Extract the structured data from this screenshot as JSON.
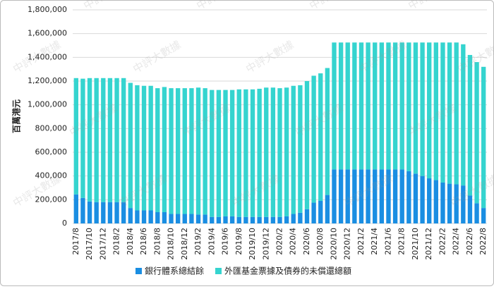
{
  "chart_data": {
    "type": "stacked-bar",
    "y_label": "百萬港元",
    "watermark": "中評大數據",
    "categories": [
      "2017/8",
      null,
      "2017/10",
      null,
      "2017/12",
      null,
      "2018/2",
      null,
      "2018/4",
      null,
      "2018/6",
      null,
      "2018/8",
      null,
      "2018/10",
      null,
      "2018/12",
      null,
      "2019/2",
      null,
      "2019/4",
      null,
      "2019/6",
      null,
      "2019/8",
      null,
      "2019/10",
      null,
      "2019/12",
      null,
      "2020/2",
      null,
      "2020/4",
      null,
      "2020/6",
      null,
      "2020/8",
      null,
      "2020/10",
      null,
      "2020/12",
      null,
      "2021/2",
      null,
      "2021/4",
      null,
      "2021/6",
      null,
      "2021/8",
      null,
      "2021/10",
      null,
      "2021/12",
      null,
      "2022/2",
      null,
      "2022/4",
      null,
      "2022/6",
      null,
      "2022/8"
    ],
    "series": [
      {
        "name": "銀行體系總結餘",
        "color": "#1a8ee2",
        "values": [
          245000,
          215000,
          185000,
          180000,
          180000,
          180000,
          180000,
          180000,
          130000,
          110000,
          110000,
          110000,
          95000,
          95000,
          80000,
          80000,
          80000,
          80000,
          75000,
          75000,
          55000,
          55000,
          60000,
          60000,
          55000,
          55000,
          55000,
          55000,
          55000,
          55000,
          55000,
          60000,
          80000,
          90000,
          120000,
          175000,
          190000,
          240000,
          455000,
          455000,
          455000,
          455000,
          455000,
          455000,
          455000,
          455000,
          455000,
          455000,
          455000,
          440000,
          420000,
          400000,
          380000,
          365000,
          345000,
          335000,
          330000,
          320000,
          235000,
          170000,
          130000
        ]
      },
      {
        "name": "外匯基金票據及債券的未償還總額",
        "color": "#35d4cf",
        "values": [
          980000,
          1005000,
          1040000,
          1045000,
          1045000,
          1045000,
          1045000,
          1045000,
          1055000,
          1055000,
          1050000,
          1050000,
          1045000,
          1055000,
          1060000,
          1060000,
          1060000,
          1060000,
          1070000,
          1065000,
          1070000,
          1070000,
          1065000,
          1065000,
          1075000,
          1075000,
          1075000,
          1080000,
          1090000,
          1090000,
          1085000,
          1085000,
          1080000,
          1075000,
          1080000,
          1070000,
          1075000,
          1070000,
          1070000,
          1070000,
          1070000,
          1070000,
          1070000,
          1070000,
          1070000,
          1070000,
          1070000,
          1070000,
          1070000,
          1085000,
          1105000,
          1125000,
          1145000,
          1160000,
          1180000,
          1190000,
          1195000,
          1190000,
          1185000,
          1190000,
          1190000
        ]
      }
    ],
    "ylim": [
      0,
      1800000
    ],
    "yticks": [
      0,
      {
        "value": 200000,
        "label": "200,000"
      },
      {
        "value": 400000,
        "label": "400,000"
      },
      {
        "value": 600000,
        "label": "600,000"
      },
      {
        "value": 800000,
        "label": "800,000"
      },
      {
        "value": 1000000,
        "label": "1,000,000"
      },
      {
        "value": 1200000,
        "label": "1,200,000"
      },
      {
        "value": 1400000,
        "label": "1,400,000"
      },
      {
        "value": 1600000,
        "label": "1,600,000"
      },
      {
        "value": 1800000,
        "label": "1,800,000"
      }
    ],
    "grid": true,
    "legend": "bottom"
  }
}
